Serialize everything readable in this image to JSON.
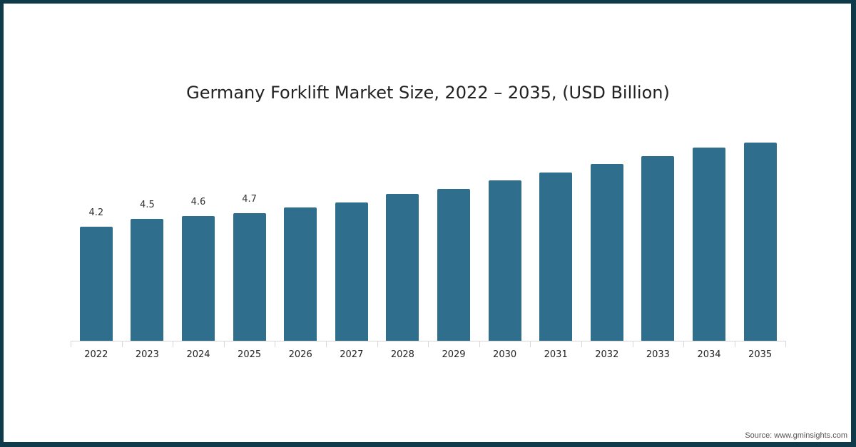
{
  "chart_data": {
    "type": "bar",
    "title": "Germany Forklift Market Size, 2022 – 2035, (USD Billion)",
    "xlabel": "",
    "ylabel": "",
    "categories": [
      "2022",
      "2023",
      "2024",
      "2025",
      "2026",
      "2027",
      "2028",
      "2029",
      "2030",
      "2031",
      "2032",
      "2033",
      "2034",
      "2035"
    ],
    "values": [
      4.2,
      4.5,
      4.6,
      4.7,
      4.9,
      5.1,
      5.4,
      5.6,
      5.9,
      6.2,
      6.5,
      6.8,
      7.1,
      7.3
    ],
    "data_labels": [
      "4.2",
      "4.5",
      "4.6",
      "4.7",
      "",
      "",
      "",
      "",
      "",
      "",
      "",
      "",
      "",
      ""
    ],
    "ylim": [
      0,
      7.5
    ],
    "grid": false,
    "legend": null,
    "bar_color": "#2f6e8d"
  },
  "footer": {
    "source": "Source: www.gminsights.com"
  },
  "colors": {
    "border": "#0e3a4a",
    "bar": "#2f6e8d",
    "background": "#ffffff"
  }
}
